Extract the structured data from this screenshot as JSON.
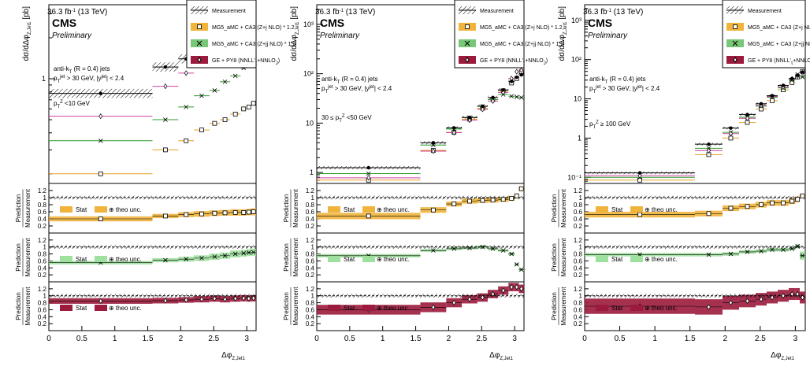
{
  "figure": {
    "experiment": "CMS",
    "status": "Preliminary",
    "lumi_label": "36.3 fb",
    "lumi_sup": "-1",
    "energy_label": " (13 TeV)",
    "main_ylabel": "dσ/dΔφ",
    "main_ylabel_sub": "Z,Jet1",
    "main_ylabel_unit": " [pb]",
    "ratio_ylabel_num": "Prediction",
    "ratio_ylabel_den": "Measurement",
    "xlabel": "Δφ",
    "xlabel_sub": "Z,Jet1",
    "jet_label_a": "anti-k",
    "jet_label_a_sub": "T",
    "jet_label_b": " (R = 0.4) jets",
    "ptcut_a": "p",
    "ptcut_a_sub": "T",
    "ptcut_a_sup": "jet",
    "ptcut_b": " > 30 GeV, |y",
    "ptcut_b_sup": "jet",
    "ptcut_c": "| < 2.4",
    "legend_stat": "Stat",
    "legend_theo": "⊕ theo unc."
  },
  "legend": [
    {
      "label": "Measurement",
      "marker": "hatch"
    },
    {
      "label": "MG5_aMC + CA3 (Z+j NLO) * 1.2",
      "marker": "square",
      "color": "#f0b43c"
    },
    {
      "label": "MG5_aMC + CA3 (Z+jj NLO) * 1.2",
      "marker": "cross",
      "color": "#78c878"
    },
    {
      "label": "GE + PY8 (NNLL'",
      "label_sub": "τ",
      "label_tail": "+NNLO",
      "label_sub2": "J",
      "label_end": ")",
      "marker": "diamond",
      "color": "#9b1b3c"
    }
  ],
  "colors": {
    "mg5j": "#e6a020",
    "mg5j_band": "#f0b43c",
    "mg5jj": "#2e9b2e",
    "mg5jj_band": "#9ee09e",
    "ge": "#9b1b3c",
    "ge_marker": "#d040a0",
    "meas": "#000000"
  },
  "chart_data": [
    {
      "type": "step",
      "region_label": "p",
      "region_sub": "T",
      "region_sup": "Z",
      "region_tail": " <10 GeV",
      "yscale": "log",
      "ylim": [
        0.17,
        3.5
      ],
      "xlim": [
        0,
        3.14159
      ],
      "yticks": [
        {
          "v": 1,
          "label": "1"
        }
      ],
      "xticks": [
        "0",
        "0.5",
        "1",
        "1.5",
        "2",
        "2.5",
        "3"
      ],
      "bins": [
        0,
        1.571,
        1.963,
        2.199,
        2.435,
        2.592,
        2.749,
        2.906,
        3.0,
        3.063,
        3.14159
      ],
      "measurement": [
        0.78,
        1.22,
        1.4,
        1.52,
        1.6,
        1.65,
        1.72,
        1.8,
        1.85,
        1.9
      ],
      "mg5j": [
        0.2,
        0.3,
        0.35,
        0.42,
        0.47,
        0.5,
        0.55,
        0.6,
        0.62,
        0.66
      ],
      "mg5jj": [
        0.35,
        0.5,
        0.62,
        0.75,
        0.82,
        0.95,
        1.05,
        1.2,
        1.25,
        1.35
      ],
      "ge": [
        0.53,
        0.88,
        1.1,
        1.25,
        1.4,
        1.45,
        1.55,
        1.6,
        1.65,
        1.7
      ],
      "ratio_ticks": [
        "0.2",
        "0.4",
        "0.6",
        "0.8",
        "1",
        "1.2"
      ],
      "ratios": [
        {
          "name": "mg5j",
          "values": [
            0.4,
            0.48,
            0.52,
            0.54,
            0.56,
            0.57,
            0.58,
            0.58,
            0.59,
            0.6
          ],
          "unc": [
            0.07,
            0.06,
            0.07,
            0.08,
            0.08,
            0.08,
            0.09,
            0.09,
            0.09,
            0.1
          ]
        },
        {
          "name": "mg5jj",
          "values": [
            0.55,
            0.62,
            0.65,
            0.68,
            0.72,
            0.75,
            0.8,
            0.82,
            0.84,
            0.85
          ],
          "unc": [
            0.05,
            0.06,
            0.07,
            0.08,
            0.09,
            0.09,
            0.1,
            0.1,
            0.1,
            0.1
          ]
        },
        {
          "name": "ge",
          "values": [
            0.85,
            0.86,
            0.88,
            0.9,
            0.92,
            0.9,
            0.92,
            0.93,
            0.92,
            0.93
          ],
          "unc": [
            0.08,
            0.08,
            0.08,
            0.09,
            0.09,
            0.09,
            0.09,
            0.09,
            0.09,
            0.09
          ]
        }
      ]
    },
    {
      "type": "step",
      "region_label": "30 ≤ p",
      "region_sub": "T",
      "region_sup": "Z",
      "region_tail": " <50 GeV",
      "yscale": "log",
      "ylim": [
        0.6,
        2500
      ],
      "xlim": [
        0,
        3.14159
      ],
      "yticks": [
        {
          "v": 1,
          "label": "1"
        },
        {
          "v": 10,
          "label": "10"
        },
        {
          "v": 100,
          "label": "10²"
        },
        {
          "v": 1000,
          "label": "10³"
        }
      ],
      "xticks": [
        "0",
        "0.5",
        "1",
        "1.5",
        "2",
        "2.5",
        "3"
      ],
      "bins": [
        0,
        1.571,
        1.963,
        2.199,
        2.435,
        2.592,
        2.749,
        2.906,
        3.0,
        3.063,
        3.14159
      ],
      "measurement": [
        1.25,
        4.0,
        8.0,
        13.0,
        22.0,
        33.0,
        47.0,
        70.0,
        85.0,
        95.0
      ],
      "mg5j": [
        0.7,
        2.8,
        6.5,
        12.0,
        20.0,
        30.0,
        45.0,
        65.0,
        80.0,
        110.0
      ],
      "mg5jj": [
        0.95,
        3.6,
        7.6,
        13.0,
        22.0,
        30.0,
        38.0,
        35.0,
        34.0,
        33.0
      ],
      "ge": [
        0.78,
        2.7,
        6.4,
        11.5,
        19.0,
        28.0,
        42.0,
        80.0,
        110.0,
        118.0
      ],
      "ratio_ticks": [
        "0.2",
        "0.4",
        "0.6",
        "0.8",
        "1",
        "1.2"
      ],
      "ratios": [
        {
          "name": "mg5j",
          "values": [
            0.48,
            0.65,
            0.82,
            0.9,
            0.92,
            0.93,
            0.95,
            0.98,
            1.05,
            1.25
          ],
          "unc": [
            0.09,
            0.08,
            0.07,
            0.07,
            0.07,
            0.07,
            0.07,
            0.07,
            0.07,
            0.07
          ]
        },
        {
          "name": "mg5jj",
          "values": [
            0.75,
            0.9,
            0.95,
            0.97,
            1.0,
            0.95,
            0.9,
            0.8,
            0.5,
            0.35
          ],
          "unc": [
            0.05,
            0.04,
            0.04,
            0.04,
            0.04,
            0.04,
            0.04,
            0.04,
            0.04,
            0.04
          ]
        },
        {
          "name": "ge",
          "values": [
            0.6,
            0.67,
            0.8,
            0.9,
            0.95,
            1.05,
            1.15,
            1.25,
            1.25,
            1.2
          ],
          "unc": [
            0.14,
            0.14,
            0.13,
            0.12,
            0.12,
            0.12,
            0.12,
            0.12,
            0.12,
            0.12
          ]
        }
      ]
    },
    {
      "type": "step",
      "region_label": "p",
      "region_sub": "T",
      "region_sup": "Z",
      "region_tail": " ≥ 100 GeV",
      "yscale": "log",
      "ylim": [
        0.07,
        2500
      ],
      "xlim": [
        0,
        3.14159
      ],
      "yticks": [
        {
          "v": 0.1,
          "label": "10⁻¹"
        },
        {
          "v": 1,
          "label": "1"
        },
        {
          "v": 10,
          "label": "10"
        },
        {
          "v": 100,
          "label": "10²"
        },
        {
          "v": 1000,
          "label": "10³"
        }
      ],
      "xticks": [
        "0",
        "0.5",
        "1",
        "1.5",
        "2",
        "2.5",
        "3"
      ],
      "bins": [
        0,
        1.571,
        1.963,
        2.199,
        2.435,
        2.592,
        2.749,
        2.906,
        3.0,
        3.063,
        3.14159
      ],
      "measurement": [
        0.13,
        0.7,
        1.8,
        4.0,
        7.5,
        12.0,
        22.0,
        33.0,
        40.0,
        48.0
      ],
      "mg5j": [
        0.085,
        0.38,
        1.0,
        2.5,
        5.5,
        9.0,
        17.0,
        26.0,
        36.0,
        50.0
      ],
      "mg5jj": [
        0.1,
        0.55,
        1.4,
        3.4,
        6.5,
        11.0,
        19.0,
        30.0,
        42.0,
        36.0
      ],
      "ge": [
        0.11,
        0.48,
        1.3,
        3.2,
        6.8,
        11.5,
        20.0,
        32.0,
        38.0,
        46.0
      ],
      "ratio_ticks": [
        "0.2",
        "0.4",
        "0.6",
        "0.8",
        "1",
        "1.2"
      ],
      "ratios": [
        {
          "name": "mg5j",
          "values": [
            0.52,
            0.55,
            0.7,
            0.75,
            0.8,
            0.85,
            0.85,
            0.9,
            0.95,
            1.05
          ],
          "unc": [
            0.08,
            0.08,
            0.08,
            0.08,
            0.08,
            0.08,
            0.08,
            0.08,
            0.08,
            0.06
          ]
        },
        {
          "name": "mg5jj",
          "values": [
            0.78,
            0.78,
            0.8,
            0.86,
            0.88,
            0.92,
            0.92,
            0.95,
            1.02,
            0.75
          ],
          "unc": [
            0.05,
            0.05,
            0.05,
            0.05,
            0.05,
            0.05,
            0.05,
            0.05,
            0.06,
            0.12
          ]
        },
        {
          "name": "ge",
          "values": [
            0.7,
            0.68,
            0.8,
            0.85,
            0.9,
            0.95,
            1.0,
            1.05,
            1.05,
            0.95
          ],
          "unc": [
            0.22,
            0.22,
            0.2,
            0.18,
            0.18,
            0.17,
            0.17,
            0.17,
            0.17,
            0.17
          ]
        }
      ]
    }
  ]
}
